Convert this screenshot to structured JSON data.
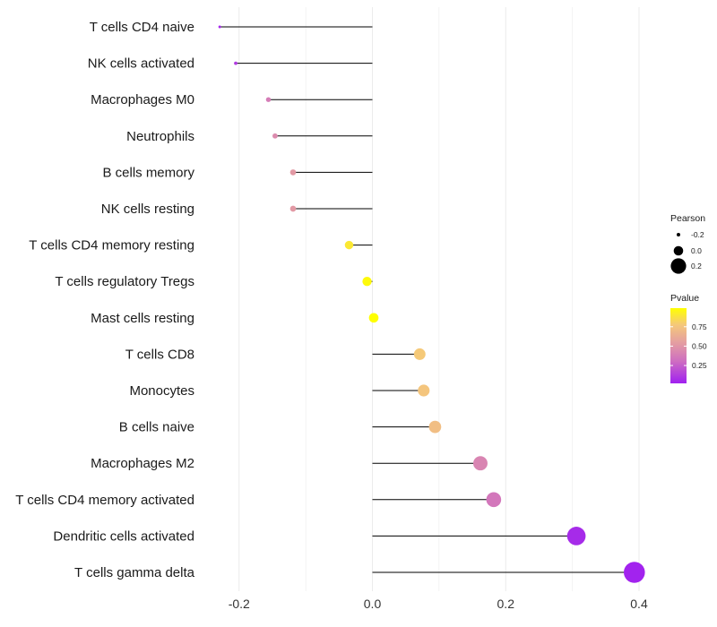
{
  "chart_data": {
    "type": "lollipop",
    "title": "",
    "xlabel": "",
    "ylabel": "",
    "xlim": [
      -0.23,
      0.41
    ],
    "x_ticks": [
      -0.2,
      0.0,
      0.2,
      0.4
    ],
    "x_tick_labels": [
      "-0.2",
      "0.0",
      "0.2",
      "0.4"
    ],
    "grid": true,
    "categories": [
      "T cells CD4 naive",
      "NK cells activated",
      "Macrophages M0",
      "Neutrophils",
      "B cells memory",
      "NK cells resting",
      "T cells CD4 memory resting",
      "T cells regulatory  Tregs ",
      "Mast cells resting",
      "T cells CD8",
      "Monocytes",
      "B cells naive",
      "Macrophages M2",
      "T cells CD4 memory activated",
      "Dendritic cells activated",
      "T cells gamma delta"
    ],
    "values": [
      -0.229,
      -0.205,
      -0.156,
      -0.146,
      -0.119,
      -0.119,
      -0.035,
      -0.008,
      0.002,
      0.071,
      0.077,
      0.094,
      0.162,
      0.182,
      0.306,
      0.393
    ],
    "pvalues": [
      0.05,
      0.12,
      0.38,
      0.45,
      0.52,
      0.52,
      0.9,
      0.97,
      0.99,
      0.78,
      0.76,
      0.72,
      0.42,
      0.35,
      0.06,
      0.03
    ],
    "size_encodes": "Pearson",
    "color_encodes": "Pvalue",
    "legend_position": "right",
    "legends": {
      "size": {
        "title": "Pearson",
        "entries": [
          {
            "value": -0.2,
            "label": "-0.2"
          },
          {
            "value": 0.0,
            "label": "0.0"
          },
          {
            "value": 0.2,
            "label": "0.2"
          }
        ]
      },
      "color": {
        "title": "Pvalue",
        "range": [
          0.02,
          0.99
        ],
        "ticks": [
          {
            "value": 0.75,
            "label": "0.75"
          },
          {
            "value": 0.5,
            "label": "0.50"
          },
          {
            "value": 0.25,
            "label": "0.25"
          }
        ]
      }
    },
    "colors": {
      "low": "#a020f0",
      "mid": "#d67fb0",
      "high_mid": "#f0c080",
      "high": "#ffff00",
      "stem": "#000000",
      "grid": "#ebebeb"
    }
  }
}
